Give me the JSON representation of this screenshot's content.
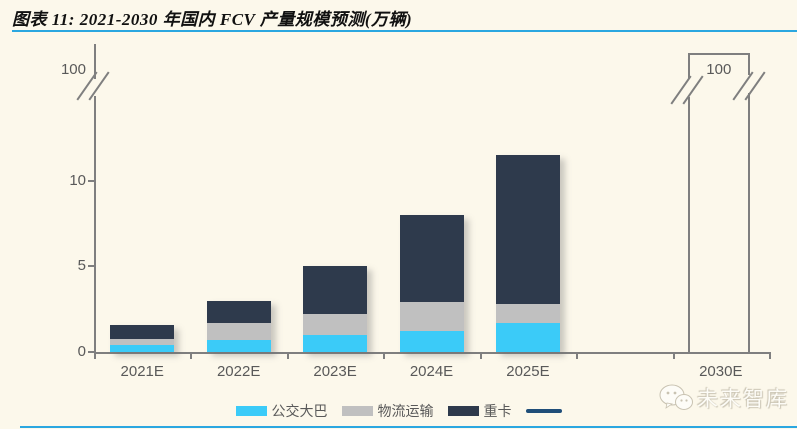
{
  "header": {
    "title": "图表 11:  2021-2030 年国内 FCV 产量规模预测(万辆)"
  },
  "watermark": {
    "text": "未来智库"
  },
  "colors": {
    "background": "#FCF8EB",
    "accent_rule": "#2BA7E0",
    "axis": "#7F7F7F",
    "tick_label": "#595959",
    "bus": "#3BCBF8",
    "logistics": "#C0C0C0",
    "truck": "#2E3A4C",
    "legend_line": "#1F4E79",
    "outline_bar_border": "#7F7F7F"
  },
  "chart_data": {
    "type": "bar",
    "stacked": true,
    "title": "图表 11:  2021-2030 年国内 FCV 产量规模预测(万辆)",
    "xlabel": "",
    "ylabel": "",
    "categories": [
      "2021E",
      "2022E",
      "2023E",
      "2024E",
      "2025E",
      "2030E"
    ],
    "category_slots": [
      0,
      1,
      2,
      3,
      4,
      6
    ],
    "series": [
      {
        "name": "公交大巴",
        "color": "#3BCBF8",
        "values": [
          0.4,
          0.7,
          1.0,
          1.2,
          1.7,
          null
        ]
      },
      {
        "name": "物流运输",
        "color": "#C0C0C0",
        "values": [
          0.35,
          1.0,
          1.2,
          1.7,
          1.1,
          null
        ]
      },
      {
        "name": "重卡",
        "color": "#2E3A4C",
        "values": [
          0.85,
          1.3,
          2.8,
          5.1,
          8.7,
          null
        ]
      }
    ],
    "totals": [
      1.6,
      3.0,
      5.0,
      8.0,
      11.5,
      100
    ],
    "outline_bar": {
      "category": "2030E",
      "value": 100,
      "label": "100"
    },
    "y_ticks": [
      0,
      5,
      10,
      100
    ],
    "y_axis_break": {
      "lower_max": 12,
      "upper_value": 100
    },
    "legend": [
      "公交大巴",
      "物流运输",
      "重卡"
    ],
    "legend_extra_line": true,
    "legend_position": "bottom",
    "grid": false
  }
}
